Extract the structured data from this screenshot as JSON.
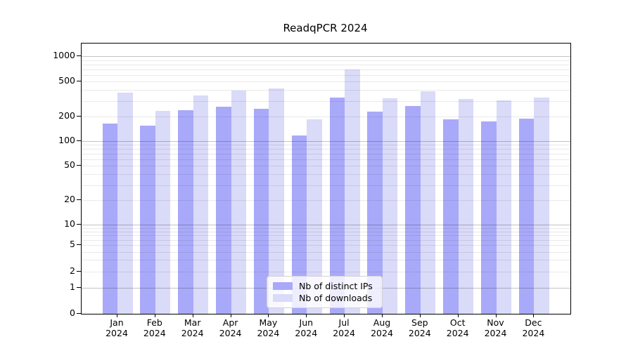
{
  "chart_data": {
    "type": "bar",
    "title": "ReadqPCR 2024",
    "categories": [
      {
        "month": "Jan",
        "year": "2024"
      },
      {
        "month": "Feb",
        "year": "2024"
      },
      {
        "month": "Mar",
        "year": "2024"
      },
      {
        "month": "Apr",
        "year": "2024"
      },
      {
        "month": "May",
        "year": "2024"
      },
      {
        "month": "Jun",
        "year": "2024"
      },
      {
        "month": "Jul",
        "year": "2024"
      },
      {
        "month": "Aug",
        "year": "2024"
      },
      {
        "month": "Sep",
        "year": "2024"
      },
      {
        "month": "Oct",
        "year": "2024"
      },
      {
        "month": "Nov",
        "year": "2024"
      },
      {
        "month": "Dec",
        "year": "2024"
      }
    ],
    "series": [
      {
        "name": "Nb of distinct IPs",
        "color": "#a9a9f9",
        "values": [
          165,
          155,
          235,
          260,
          245,
          118,
          330,
          228,
          265,
          185,
          175,
          190
        ]
      },
      {
        "name": "Nb of downloads",
        "color": "#dadaf9",
        "values": [
          370,
          230,
          350,
          395,
          415,
          185,
          700,
          320,
          385,
          318,
          305,
          330
        ]
      }
    ],
    "yticks": [
      0,
      1,
      2,
      5,
      10,
      20,
      50,
      100,
      200,
      500,
      1000
    ],
    "yscale": "log-like (asinh)",
    "ylim": [
      0,
      1400
    ],
    "xlabel": "",
    "ylabel": "",
    "grid": true,
    "legend_position": "lower center"
  },
  "colors": {
    "grid_major": "#c4c4c4",
    "grid_minor": "#eaeaea",
    "axis": "#000000",
    "background": "#ffffff"
  }
}
